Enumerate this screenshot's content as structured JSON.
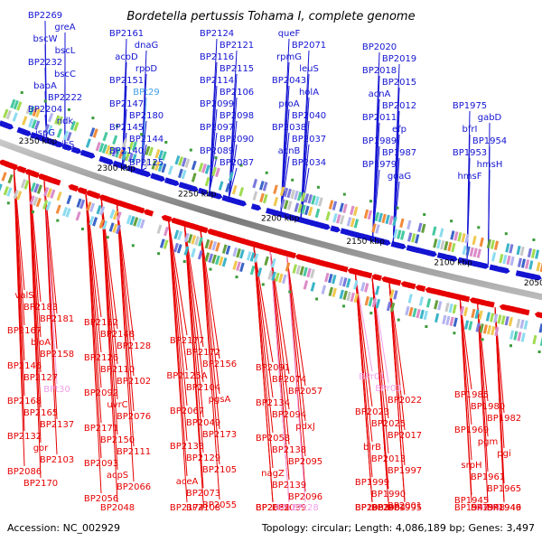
{
  "title": "Bordetella pertussis Tohama I, complete genome",
  "footer": {
    "accession": "Accession: NC_002929",
    "summary": "Topology: circular; Length: 4,086,189 bp; Genes: 3,497"
  },
  "colors": {
    "forward": "#1414d2",
    "reverse": "#e60000",
    "rna": "#46a0e6",
    "pseudo_reverse": "#f0a0e6",
    "backbone": "#888888"
  },
  "ticks": [
    "2350 kbp",
    "2300 kbp",
    "2250 kbp",
    "2200 kbp",
    "2150 kbp",
    "2100 kbp",
    "2050 kbp"
  ],
  "forward_labels": [
    "BP2269",
    "greA",
    "bscW",
    "bscL",
    "BP2232",
    "bscC",
    "bapA",
    "BP2222",
    "BP2204",
    "ndk",
    "ispG",
    "hisS",
    "BP2161",
    "dnaG",
    "acoD",
    "rpoD",
    "BP2151",
    "BPt29",
    "BP2147",
    "BP2180",
    "BP2145",
    "BP2144",
    "BP2140",
    "BP2125",
    "BP2124",
    "BP2121",
    "BP2116",
    "BP2115",
    "BP2114",
    "BP2106",
    "BP2099",
    "BP2098",
    "BP2097",
    "BP2090",
    "BP2089",
    "BP2087",
    "queF",
    "BP2071",
    "rpmG",
    "leuS",
    "BP2043",
    "holA",
    "proA",
    "BP2040",
    "BP2038",
    "BP2037",
    "acnB",
    "BP2034",
    "BP2020",
    "BP2019",
    "BP2018",
    "BP2015",
    "acnA",
    "BP2012",
    "BP2011",
    "efp",
    "BP1989",
    "BP1987",
    "BP1979",
    "goaG",
    "BP1975",
    "gabD",
    "bfrI",
    "BP1954",
    "BP1953",
    "hmsH",
    "hmsF"
  ],
  "reverse_labels": [
    "valS",
    "BP2183",
    "BP2181",
    "BP2167",
    "bioA",
    "BP2158",
    "BP2146",
    "BP2127",
    "BPt30",
    "BP2168",
    "BP2165",
    "BP2137",
    "BP2132",
    "gor",
    "BP2103",
    "BP2086",
    "BP2170",
    "BP2152",
    "BP2148",
    "BP2128",
    "BP2126",
    "BP2110",
    "BP2102",
    "BP2092",
    "uvrC",
    "BP2076",
    "BP2171",
    "BP2150",
    "BP2111",
    "BP2093",
    "acpS",
    "BP2066",
    "BP2056",
    "BP2048",
    "BP2177",
    "BP2172",
    "BP2156",
    "BP2125A",
    "BP2104",
    "pgsA",
    "BP2067",
    "BP2049",
    "BP2173",
    "BP2133",
    "BP2129",
    "BP2105",
    "aceA",
    "BP2073",
    "BP2055",
    "BP2174",
    "BP2108",
    "BP2091",
    "BP2074",
    "BP2057",
    "BP2134",
    "BP2094",
    "pdxJ",
    "BP2058",
    "BP2138",
    "BP2095",
    "nagZ",
    "BP2139",
    "BP2096",
    "BP2059",
    "BP2039",
    "BPt28",
    "BP2031",
    "BPt27",
    "BPr01",
    "BPr03",
    "BP2022",
    "BP2023",
    "BP2025",
    "BP2017",
    "birB",
    "BP2013",
    "BP1997",
    "BP1999",
    "BP1990",
    "BP2001",
    "BP2003",
    "BP2004",
    "BP1995",
    "BP1983",
    "BP1984",
    "BP1985",
    "BP1980",
    "BP1982",
    "BP1969",
    "pgm",
    "pgi",
    "srpH",
    "BP1961",
    "BP1965",
    "BP1945",
    "BPt25",
    "BP1946",
    "BP1947",
    "BP1948",
    "BP1949"
  ]
}
